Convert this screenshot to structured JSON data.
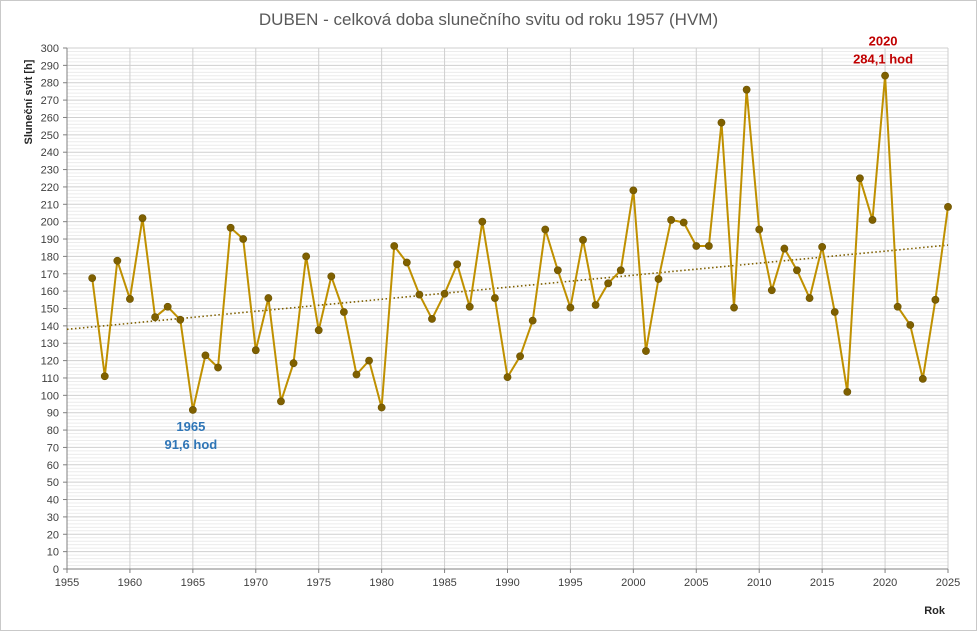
{
  "chart_data": {
    "type": "line",
    "title": "DUBEN - celková doba slunečního svitu od roku 1957 (HVM)",
    "xlabel": "Rok",
    "ylabel": "Sluneční svit [h]",
    "xlim": [
      1955,
      2025
    ],
    "ylim": [
      0,
      300
    ],
    "x_ticks": [
      1955,
      1960,
      1965,
      1970,
      1975,
      1980,
      1985,
      1990,
      1995,
      2000,
      2005,
      2010,
      2015,
      2020,
      2025
    ],
    "y_ticks": [
      0,
      10,
      20,
      30,
      40,
      50,
      60,
      70,
      80,
      90,
      100,
      110,
      120,
      130,
      140,
      150,
      160,
      170,
      180,
      190,
      200,
      210,
      220,
      230,
      240,
      250,
      260,
      270,
      280,
      290,
      300
    ],
    "grid": true,
    "series": [
      {
        "x": [
          1957,
          1958,
          1959,
          1960,
          1961,
          1962,
          1963,
          1964,
          1965,
          1966,
          1967,
          1968,
          1969,
          1970,
          1971,
          1972,
          1973,
          1974,
          1975,
          1976,
          1977,
          1978,
          1979,
          1980,
          1981,
          1982,
          1983,
          1984,
          1985,
          1986,
          1987,
          1988,
          1989,
          1990,
          1991,
          1992,
          1993,
          1994,
          1995,
          1996,
          1997,
          1998,
          1999,
          2000,
          2001,
          2002,
          2003,
          2004,
          2005,
          2006,
          2007,
          2008,
          2009,
          2010,
          2011,
          2012,
          2013,
          2014,
          2015,
          2016,
          2017,
          2018,
          2019,
          2020,
          2021,
          2022,
          2023,
          2024,
          2025
        ],
        "values": [
          167.5,
          111.0,
          177.5,
          155.5,
          202.0,
          145.0,
          151.0,
          143.5,
          91.6,
          123.0,
          116.0,
          196.5,
          190.0,
          126.0,
          156.0,
          96.5,
          118.5,
          180.0,
          137.5,
          168.5,
          148.0,
          112.0,
          120.0,
          93.0,
          186.0,
          176.5,
          158.0,
          144.0,
          158.5,
          175.5,
          151.0,
          200.0,
          156.0,
          110.5,
          122.5,
          143.0,
          195.5,
          172.0,
          150.5,
          189.5,
          152.0,
          164.5,
          172.0,
          218.0,
          125.5,
          167.0,
          201.0,
          199.5,
          186.0,
          186.0,
          257.0,
          150.5,
          276.0,
          195.5,
          160.5,
          184.5,
          172.0,
          156.0,
          185.5,
          148.0,
          102.0,
          225.0,
          201.0,
          284.1,
          151.0,
          140.5,
          109.5,
          155.0,
          208.5
        ],
        "color": "#bf9000",
        "marker_color": "#7f6000"
      }
    ],
    "trendline": {
      "x": [
        1955,
        2025
      ],
      "values": [
        138.0,
        186.5
      ],
      "color": "#7f6000",
      "style": "dotted"
    },
    "annotations": [
      {
        "year_line": "1965",
        "value_line": "91,6 hod",
        "x": 1965,
        "y": 91.6,
        "color": "#2e75b6",
        "position": "below"
      },
      {
        "year_line": "2020",
        "value_line": "284,1 hod",
        "x": 2020,
        "y": 284.1,
        "color": "#c00000",
        "position": "above"
      }
    ]
  }
}
